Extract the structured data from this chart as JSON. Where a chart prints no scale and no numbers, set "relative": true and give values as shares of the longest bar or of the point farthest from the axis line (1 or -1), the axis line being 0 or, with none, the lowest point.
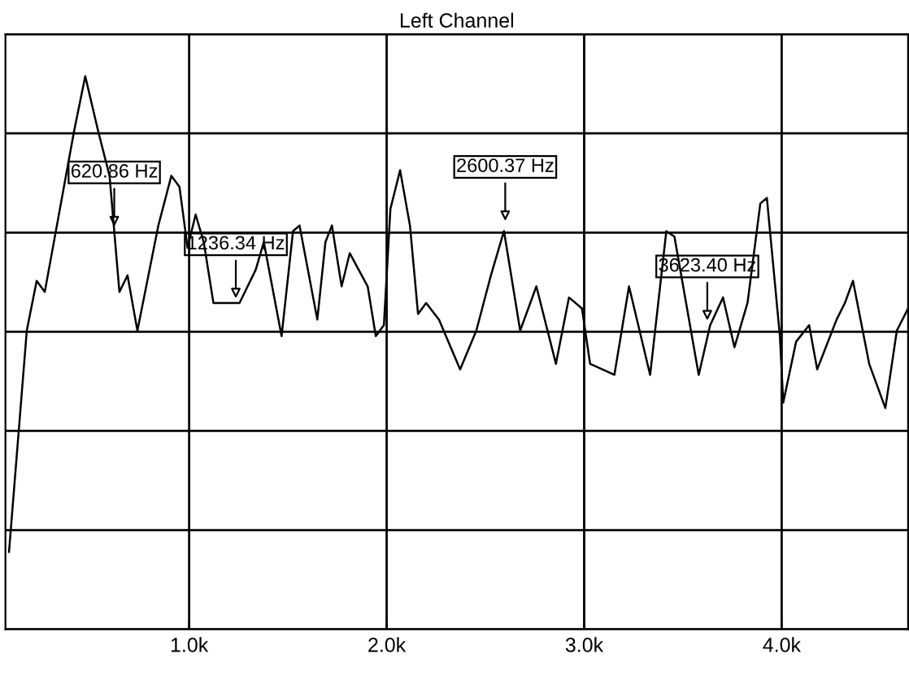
{
  "chart_data": {
    "type": "line",
    "title": "Left Channel",
    "relative": true,
    "x": [
      88,
      178,
      228,
      269,
      310,
      417,
      474,
      540,
      597,
      647,
      688,
      738,
      844,
      910,
      951,
      992,
      1033,
      1074,
      1123,
      1255,
      1337,
      1378,
      1468,
      1526,
      1559,
      1649,
      1690,
      1723,
      1772,
      1813,
      1904,
      1945,
      1986,
      2019,
      2068,
      2118,
      2159,
      2200,
      2265,
      2372,
      2454,
      2528,
      2594,
      2676,
      2758,
      2857,
      2923,
      2989,
      3030,
      3153,
      3227,
      3334,
      3416,
      3457,
      3580,
      3638,
      3703,
      3761,
      3827,
      3892,
      3925,
      3991,
      4008,
      4073,
      4139,
      4180,
      4278,
      4320,
      4361,
      4443,
      4525,
      4583,
      4640
    ],
    "series": [
      {
        "color": "#000000",
        "values": [
          0.14,
          0.54,
          0.63,
          0.61,
          0.69,
          0.9,
          1.0,
          0.9,
          0.82,
          0.61,
          0.64,
          0.54,
          0.73,
          0.82,
          0.8,
          0.69,
          0.75,
          0.7,
          0.59,
          0.59,
          0.65,
          0.7,
          0.53,
          0.72,
          0.73,
          0.56,
          0.7,
          0.73,
          0.62,
          0.68,
          0.62,
          0.53,
          0.55,
          0.76,
          0.83,
          0.73,
          0.57,
          0.59,
          0.56,
          0.47,
          0.54,
          0.64,
          0.72,
          0.54,
          0.62,
          0.48,
          0.6,
          0.58,
          0.48,
          0.46,
          0.62,
          0.46,
          0.72,
          0.71,
          0.46,
          0.55,
          0.6,
          0.51,
          0.59,
          0.77,
          0.78,
          0.53,
          0.41,
          0.52,
          0.55,
          0.47,
          0.56,
          0.59,
          0.63,
          0.48,
          0.4,
          0.54,
          0.58
        ]
      }
    ],
    "xlim": [
      70,
      4640
    ],
    "xticks": [
      {
        "value": 1000,
        "label": "1.0k"
      },
      {
        "value": 2000,
        "label": "2.0k"
      },
      {
        "value": 3000,
        "label": "3.0k"
      },
      {
        "value": 4000,
        "label": "4.0k"
      }
    ],
    "tick_labels": "x",
    "grid": true,
    "marker": "none",
    "line_style": "solid",
    "annotations": [
      {
        "text": "620.86 Hz",
        "x": 620.86,
        "y": 0.72
      },
      {
        "text": "1236.34 Hz",
        "x": 1236.34,
        "y": 0.59
      },
      {
        "text": "2600.37 Hz",
        "x": 2600.37,
        "y": 0.73
      },
      {
        "text": "3623.40 Hz",
        "x": 3623.4,
        "y": 0.55
      }
    ]
  }
}
